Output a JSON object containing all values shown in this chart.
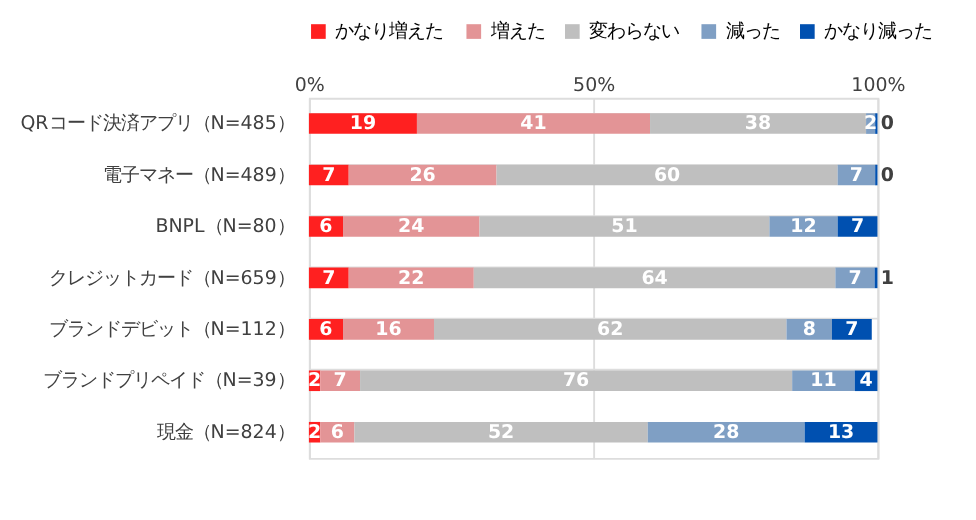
{
  "chart_data": {
    "type": "bar",
    "orientation": "horizontal",
    "stacked": true,
    "categories": [
      "QRコード決済アプリ（N=485）",
      "電子マネー（N=489）",
      "BNPL（N=80）",
      "クレジットカード（N=659）",
      "ブランドデビット（N=112）",
      "ブランドプリペイド（N=39）",
      "現金（N=824）"
    ],
    "series": [
      {
        "name": "かなり増えた",
        "color": "#ff2020",
        "values": [
          19,
          7,
          6,
          7,
          6,
          2,
          2
        ]
      },
      {
        "name": "増えた",
        "color": "#e39496",
        "values": [
          41,
          26,
          24,
          22,
          16,
          7,
          6
        ]
      },
      {
        "name": "変わらない",
        "color": "#bfbfbf",
        "values": [
          38,
          60,
          51,
          63.6,
          62,
          76,
          51.6
        ],
        "value_labels": [
          "38",
          "60",
          "51",
          "64",
          "62",
          "76",
          "52"
        ]
      },
      {
        "name": "減った",
        "color": "#7f9fc4",
        "values": [
          1.6,
          6.6,
          12,
          6.9,
          8,
          11,
          27.6
        ],
        "value_labels": [
          "2",
          "7",
          "12",
          "7",
          "8",
          "11",
          "28"
        ]
      },
      {
        "name": "かなり減った",
        "color": "#0050b0",
        "values": [
          0.4,
          0.4,
          7,
          0.5,
          7,
          4,
          12.8
        ],
        "value_labels": [
          "0",
          "0",
          "7",
          "1",
          "7",
          "4",
          "13"
        ]
      }
    ],
    "data_labels": true,
    "xlim": [
      0,
      100
    ],
    "xticks": [
      {
        "value": 0,
        "label": "0%"
      },
      {
        "value": 50,
        "label": "50%"
      },
      {
        "value": 100,
        "label": "100%"
      }
    ],
    "grid": true,
    "legend": "top"
  }
}
